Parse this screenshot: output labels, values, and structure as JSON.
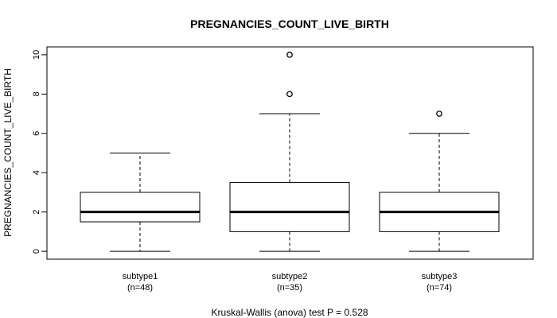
{
  "chart_data": {
    "type": "box",
    "title": "PREGNANCIES_COUNT_LIVE_BIRTH",
    "ylabel": "PREGNANCIES_COUNT_LIVE_BIRTH",
    "xlabel": "",
    "ylim": [
      -0.4,
      10.4
    ],
    "yticks": [
      "0",
      "2",
      "4",
      "6",
      "8",
      "10"
    ],
    "footnote": "Kruskal-Wallis (anova) test P = 0.528",
    "groups": [
      {
        "name": "subtype1",
        "n_label": "(n=48)",
        "whisker_low": 0,
        "q1": 1.5,
        "median": 2,
        "q3": 3,
        "whisker_high": 5,
        "outliers": []
      },
      {
        "name": "subtype2",
        "n_label": "(n=35)",
        "whisker_low": 0,
        "q1": 1,
        "median": 2,
        "q3": 3.5,
        "whisker_high": 7,
        "outliers": [
          8,
          10
        ]
      },
      {
        "name": "subtype3",
        "n_label": "(n=74)",
        "whisker_low": 0,
        "q1": 1,
        "median": 2,
        "q3": 3,
        "whisker_high": 6,
        "outliers": [
          7
        ]
      }
    ]
  }
}
